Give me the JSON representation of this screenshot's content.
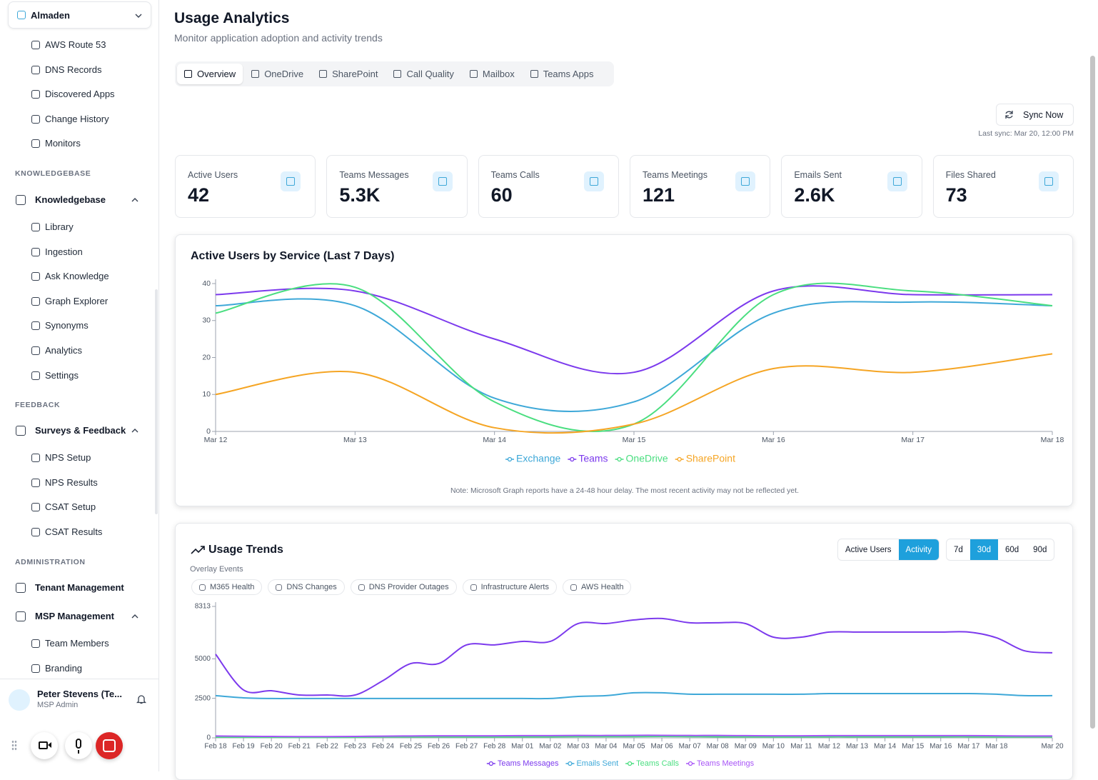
{
  "sidebar": {
    "workspace": "Almaden",
    "nav_items": [
      "AWS Route 53",
      "DNS Records",
      "Discovered Apps",
      "Change History",
      "Monitors"
    ],
    "knowledgebase": {
      "heading": "KNOWLEDGEBASE",
      "group": "Knowledgebase",
      "items": [
        "Library",
        "Ingestion",
        "Ask Knowledge",
        "Graph Explorer",
        "Synonyms",
        "Analytics",
        "Settings"
      ]
    },
    "feedback": {
      "heading": "FEEDBACK",
      "group": "Surveys & Feedback",
      "items": [
        "NPS Setup",
        "NPS Results",
        "CSAT Setup",
        "CSAT Results"
      ]
    },
    "administration": {
      "heading": "ADMINISTRATION",
      "tenant": "Tenant Management",
      "group": "MSP Management",
      "items": [
        "Team Members",
        "Branding"
      ]
    },
    "user": {
      "name": "Peter Stevens (Te...",
      "role": "MSP Admin"
    }
  },
  "header": {
    "title": "Usage Analytics",
    "subtitle": "Monitor application adoption and activity trends"
  },
  "tabs": [
    "Overview",
    "OneDrive",
    "SharePoint",
    "Call Quality",
    "Mailbox",
    "Teams Apps"
  ],
  "sync": {
    "button": "Sync Now",
    "last_sync": "Last sync: Mar 20, 12:00 PM"
  },
  "kpis": [
    {
      "label": "Active Users",
      "value": "42"
    },
    {
      "label": "Teams Messages",
      "value": "5.3K"
    },
    {
      "label": "Teams Calls",
      "value": "60"
    },
    {
      "label": "Teams Meetings",
      "value": "121"
    },
    {
      "label": "Emails Sent",
      "value": "2.6K"
    },
    {
      "label": "Files Shared",
      "value": "73"
    }
  ],
  "trends_controls": {
    "modes": [
      "Active Users",
      "Activity"
    ],
    "ranges": [
      "7d",
      "30d",
      "60d",
      "90d"
    ],
    "overlay_title": "Overlay Events",
    "overlays": [
      "M365 Health",
      "DNS Changes",
      "DNS Provider Outages",
      "Infrastructure Alerts",
      "AWS Health"
    ]
  },
  "chart_data": [
    {
      "type": "line",
      "title": "Active Users by Service (Last 7 Days)",
      "note": "Note: Microsoft Graph reports have a 24-48 hour delay. The most recent activity may not be reflected yet.",
      "categories": [
        "Mar 12",
        "Mar 13",
        "Mar 14",
        "Mar 15",
        "Mar 16",
        "Mar 17",
        "Mar 18"
      ],
      "ylim": [
        0,
        40
      ],
      "yticks": [
        0,
        10,
        20,
        30,
        40
      ],
      "grid": false,
      "series": [
        {
          "name": "Exchange",
          "color": "#3ea8d8",
          "values": [
            34,
            34,
            9,
            8,
            32,
            35,
            34
          ]
        },
        {
          "name": "Teams",
          "color": "#7c3aed",
          "values": [
            37,
            38,
            25,
            16,
            38,
            37,
            37
          ]
        },
        {
          "name": "OneDrive",
          "color": "#4ade80",
          "values": [
            32,
            39,
            8,
            2,
            37,
            38,
            34
          ]
        },
        {
          "name": "SharePoint",
          "color": "#f5a524",
          "values": [
            10,
            16,
            1,
            2,
            17,
            16,
            21
          ]
        }
      ]
    },
    {
      "type": "line",
      "title": "Usage Trends",
      "categories": [
        "Feb 18",
        "Feb 19",
        "Feb 20",
        "Feb 21",
        "Feb 22",
        "Feb 23",
        "Feb 24",
        "Feb 25",
        "Feb 26",
        "Feb 27",
        "Feb 28",
        "Mar 01",
        "Mar 02",
        "Mar 03",
        "Mar 04",
        "Mar 05",
        "Mar 06",
        "Mar 07",
        "Mar 08",
        "Mar 09",
        "Mar 10",
        "Mar 11",
        "Mar 12",
        "Mar 13",
        "Mar 14",
        "Mar 15",
        "Mar 16",
        "Mar 17",
        "Mar 18",
        null,
        "Mar 20"
      ],
      "ylim": [
        0,
        8313
      ],
      "yticks": [
        0,
        2500,
        5000,
        8313
      ],
      "grid": false,
      "series": [
        {
          "name": "Teams Messages",
          "color": "#7c3aed",
          "values": [
            5290,
            3030,
            2980,
            2710,
            2710,
            2710,
            3620,
            4700,
            4700,
            5880,
            5880,
            6100,
            6100,
            7230,
            7230,
            7460,
            7550,
            7280,
            7280,
            7230,
            6370,
            6370,
            6690,
            6690,
            6690,
            6690,
            6690,
            6690,
            6330,
            5510,
            5380
          ]
        },
        {
          "name": "Emails Sent",
          "color": "#3ea8d8",
          "values": [
            2670,
            2530,
            2490,
            2490,
            2490,
            2490,
            2490,
            2490,
            2490,
            2490,
            2490,
            2490,
            2490,
            2620,
            2670,
            2850,
            2850,
            2760,
            2760,
            2760,
            2760,
            2760,
            2800,
            2800,
            2800,
            2800,
            2800,
            2800,
            2760,
            2670,
            2670
          ]
        },
        {
          "name": "Teams Calls",
          "color": "#4ade80",
          "values": [
            50,
            40,
            40,
            30,
            30,
            40,
            60,
            60,
            70,
            60,
            60,
            70,
            70,
            80,
            80,
            80,
            90,
            80,
            70,
            70,
            60,
            60,
            70,
            70,
            70,
            70,
            70,
            70,
            60,
            60,
            60
          ]
        },
        {
          "name": "Teams Meetings",
          "color": "#a855f7",
          "values": [
            120,
            100,
            90,
            80,
            80,
            90,
            110,
            120,
            130,
            130,
            130,
            140,
            140,
            150,
            150,
            160,
            160,
            150,
            150,
            140,
            130,
            130,
            140,
            140,
            140,
            140,
            140,
            140,
            130,
            120,
            120
          ]
        }
      ]
    }
  ]
}
